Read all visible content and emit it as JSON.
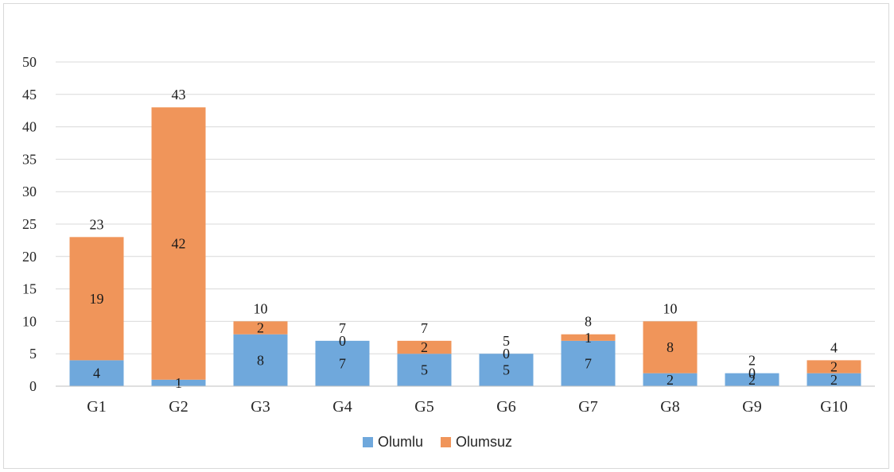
{
  "chart_data": {
    "type": "bar",
    "stacked": true,
    "categories": [
      "G1",
      "G2",
      "G3",
      "G4",
      "G5",
      "G6",
      "G7",
      "G8",
      "G9",
      "G10"
    ],
    "series": [
      {
        "name": "Olumlu",
        "color": "#6fa8dc",
        "values": [
          4,
          1,
          8,
          7,
          5,
          5,
          7,
          2,
          2,
          2
        ]
      },
      {
        "name": "Olumsuz",
        "color": "#f0955a",
        "values": [
          19,
          42,
          2,
          0,
          2,
          0,
          1,
          8,
          0,
          2
        ]
      }
    ],
    "totals": [
      23,
      43,
      10,
      7,
      7,
      5,
      8,
      10,
      2,
      4
    ],
    "title": "",
    "xlabel": "",
    "ylabel": "",
    "ylim": [
      0,
      50
    ],
    "yticks": [
      0,
      5,
      10,
      15,
      20,
      25,
      30,
      35,
      40,
      45,
      50
    ],
    "grid": true,
    "legend_position": "bottom"
  }
}
